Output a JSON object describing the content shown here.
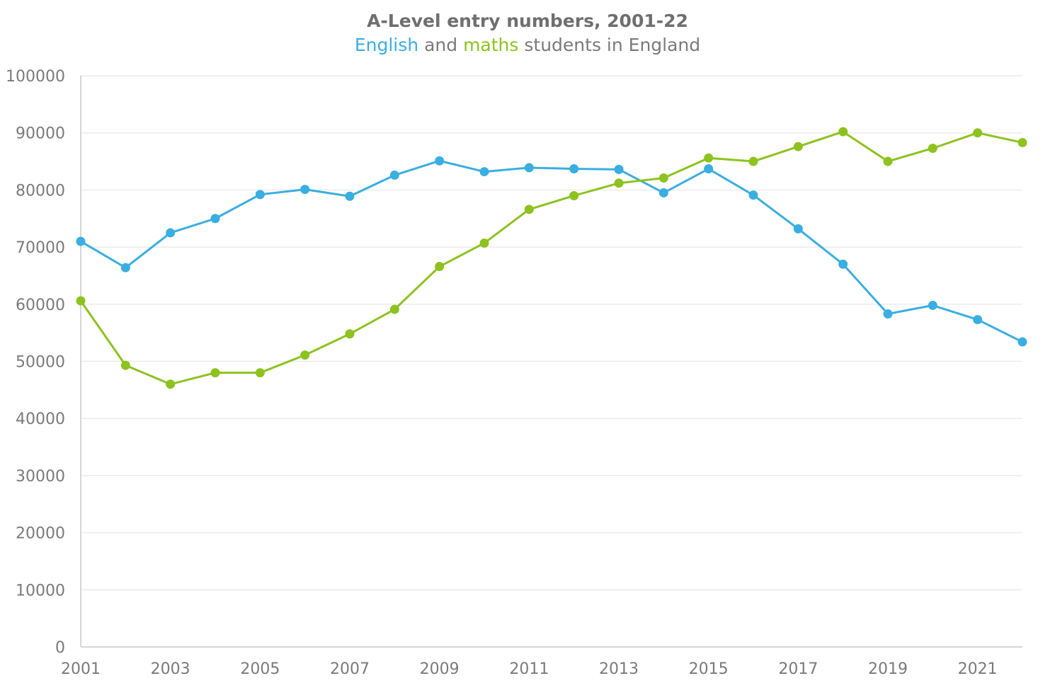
{
  "chart_data": {
    "type": "line",
    "title": "A-Level entry numbers, 2001-22",
    "subtitle_parts": [
      {
        "text": "English",
        "color": "#3aaee0"
      },
      {
        "text": " and ",
        "color": "#7a7a7a"
      },
      {
        "text": "maths",
        "color": "#8dc21f"
      },
      {
        "text": " students in England",
        "color": "#7a7a7a"
      }
    ],
    "xlabel": "",
    "ylabel": "",
    "x": [
      2001,
      2002,
      2003,
      2004,
      2005,
      2006,
      2007,
      2008,
      2009,
      2010,
      2011,
      2012,
      2013,
      2014,
      2015,
      2016,
      2017,
      2018,
      2019,
      2020,
      2021,
      2022
    ],
    "x_tick_labels": [
      "2001",
      "2003",
      "2005",
      "2007",
      "2009",
      "2011",
      "2013",
      "2015",
      "2017",
      "2019",
      "2021"
    ],
    "ylim": [
      0,
      100000
    ],
    "y_ticks": [
      0,
      10000,
      20000,
      30000,
      40000,
      50000,
      60000,
      70000,
      80000,
      90000,
      100000
    ],
    "grid": true,
    "legend": "none",
    "series": [
      {
        "name": "English",
        "color": "#3aaee0",
        "values": [
          71000,
          66400,
          72500,
          75000,
          79200,
          80100,
          78900,
          82600,
          85100,
          83200,
          83900,
          83700,
          83600,
          79500,
          83700,
          79100,
          73200,
          67000,
          58300,
          59800,
          57300,
          53400
        ]
      },
      {
        "name": "maths",
        "color": "#8dc21f",
        "values": [
          60600,
          49300,
          46000,
          48000,
          48000,
          51100,
          54800,
          59100,
          66600,
          70700,
          76600,
          79000,
          81200,
          82100,
          85600,
          85000,
          87600,
          90200,
          85000,
          87300,
          90000,
          88300
        ]
      }
    ]
  }
}
